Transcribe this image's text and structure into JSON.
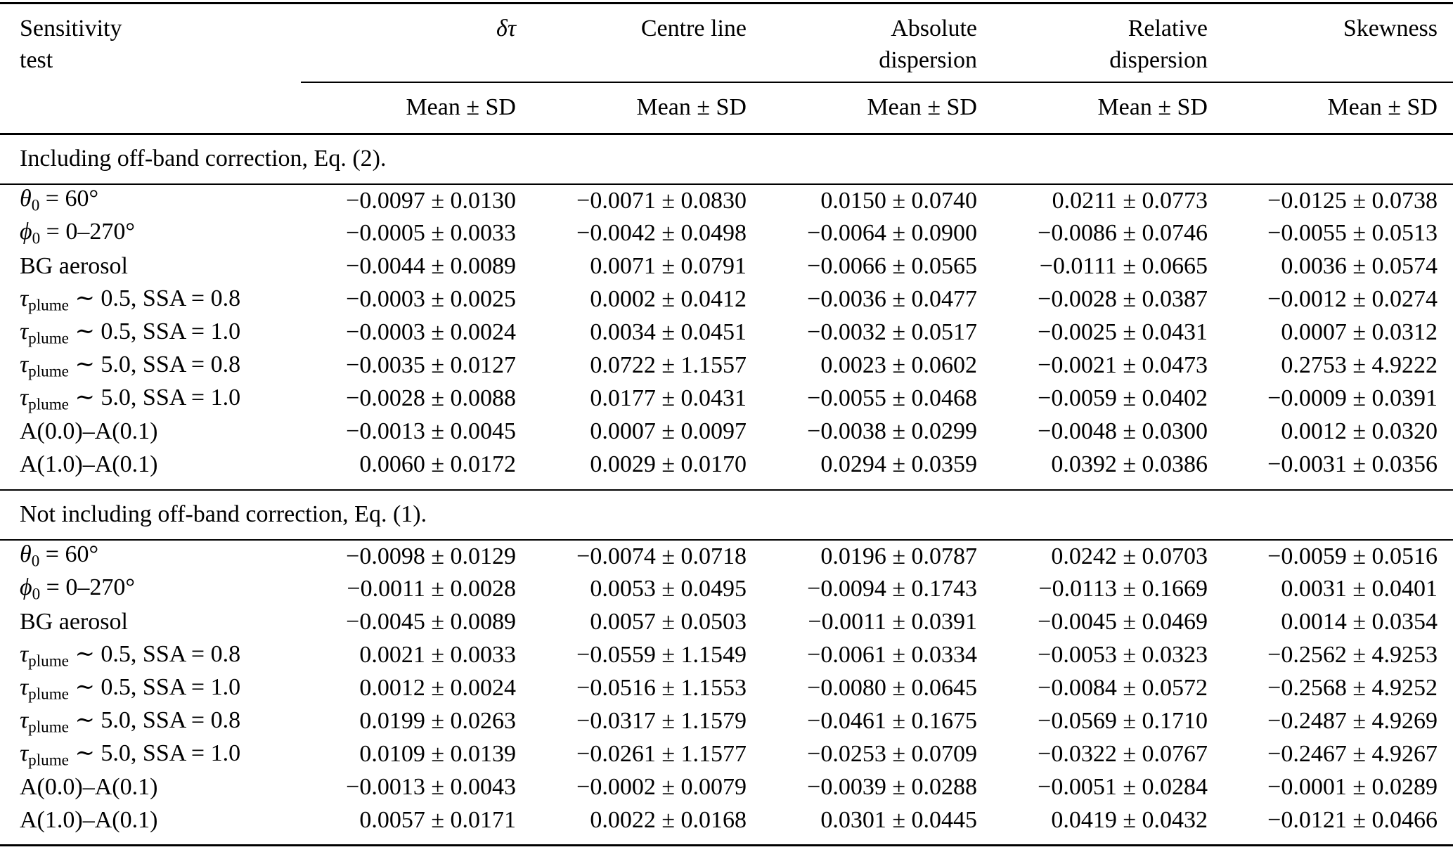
{
  "page": {
    "background": "#ffffff",
    "text_color": "#000000"
  },
  "table": {
    "row_header": {
      "line1": "Sensitivity",
      "line2": "test"
    },
    "subheader_label": "Mean ± SD",
    "columns": [
      {
        "key": "dtau",
        "line1": "δτ",
        "line2": ""
      },
      {
        "key": "centre-line",
        "line1": "Centre line",
        "line2": ""
      },
      {
        "key": "absolute-dispersion",
        "line1": "Absolute",
        "line2": "dispersion"
      },
      {
        "key": "relative-dispersion",
        "line1": "Relative",
        "line2": "dispersion"
      },
      {
        "key": "skewness",
        "line1": "Skewness",
        "line2": ""
      }
    ],
    "sections": [
      {
        "title": "Including off-band correction, Eq. (2).",
        "rows": [
          {
            "label_parts": [
              {
                "text": "θ",
                "style": "italic"
              },
              {
                "text": "0",
                "style": "sub"
              },
              {
                "text": " = 60°",
                "style": "normal"
              }
            ],
            "values": [
              "−0.0097 ± 0.0130",
              "−0.0071 ± 0.0830",
              "0.0150 ± 0.0740",
              "0.0211 ± 0.0773",
              "−0.0125 ± 0.0738"
            ]
          },
          {
            "label_parts": [
              {
                "text": "ϕ",
                "style": "italic"
              },
              {
                "text": "0",
                "style": "sub"
              },
              {
                "text": " = 0–270°",
                "style": "normal"
              }
            ],
            "values": [
              "−0.0005 ± 0.0033",
              "−0.0042 ± 0.0498",
              "−0.0064 ± 0.0900",
              "−0.0086 ± 0.0746",
              "−0.0055 ± 0.0513"
            ]
          },
          {
            "label_parts": [
              {
                "text": "BG aerosol",
                "style": "normal"
              }
            ],
            "values": [
              "−0.0044 ± 0.0089",
              "0.0071 ± 0.0791",
              "−0.0066 ± 0.0565",
              "−0.0111 ± 0.0665",
              "0.0036 ± 0.0574"
            ]
          },
          {
            "label_parts": [
              {
                "text": "τ",
                "style": "italic"
              },
              {
                "text": "plume",
                "style": "sub"
              },
              {
                "text": " ∼ 0.5, SSA = 0.8",
                "style": "normal"
              }
            ],
            "values": [
              "−0.0003 ± 0.0025",
              "0.0002 ± 0.0412",
              "−0.0036 ± 0.0477",
              "−0.0028 ± 0.0387",
              "−0.0012 ± 0.0274"
            ]
          },
          {
            "label_parts": [
              {
                "text": "τ",
                "style": "italic"
              },
              {
                "text": "plume",
                "style": "sub"
              },
              {
                "text": " ∼ 0.5, SSA = 1.0",
                "style": "normal"
              }
            ],
            "values": [
              "−0.0003 ± 0.0024",
              "0.0034 ± 0.0451",
              "−0.0032 ± 0.0517",
              "−0.0025 ± 0.0431",
              "0.0007 ± 0.0312"
            ]
          },
          {
            "label_parts": [
              {
                "text": "τ",
                "style": "italic"
              },
              {
                "text": "plume",
                "style": "sub"
              },
              {
                "text": " ∼ 5.0, SSA = 0.8",
                "style": "normal"
              }
            ],
            "values": [
              "−0.0035 ± 0.0127",
              "0.0722 ± 1.1557",
              "0.0023 ± 0.0602",
              "−0.0021 ± 0.0473",
              "0.2753 ± 4.9222"
            ]
          },
          {
            "label_parts": [
              {
                "text": "τ",
                "style": "italic"
              },
              {
                "text": "plume",
                "style": "sub"
              },
              {
                "text": " ∼ 5.0, SSA = 1.0",
                "style": "normal"
              }
            ],
            "values": [
              "−0.0028 ± 0.0088",
              "0.0177 ± 0.0431",
              "−0.0055 ± 0.0468",
              "−0.0059 ± 0.0402",
              "−0.0009 ± 0.0391"
            ]
          },
          {
            "label_parts": [
              {
                "text": "A(0.0)–A(0.1)",
                "style": "normal"
              }
            ],
            "values": [
              "−0.0013 ± 0.0045",
              "0.0007 ± 0.0097",
              "−0.0038 ± 0.0299",
              "−0.0048 ± 0.0300",
              "0.0012 ± 0.0320"
            ]
          },
          {
            "label_parts": [
              {
                "text": "A(1.0)–A(0.1)",
                "style": "normal"
              }
            ],
            "values": [
              "0.0060 ± 0.0172",
              "0.0029 ± 0.0170",
              "0.0294 ± 0.0359",
              "0.0392 ± 0.0386",
              "−0.0031 ± 0.0356"
            ]
          }
        ]
      },
      {
        "title": "Not including off-band correction, Eq. (1).",
        "rows": [
          {
            "label_parts": [
              {
                "text": "θ",
                "style": "italic"
              },
              {
                "text": "0",
                "style": "sub"
              },
              {
                "text": " = 60°",
                "style": "normal"
              }
            ],
            "values": [
              "−0.0098 ± 0.0129",
              "−0.0074 ± 0.0718",
              "0.0196 ± 0.0787",
              "0.0242 ± 0.0703",
              "−0.0059 ± 0.0516"
            ]
          },
          {
            "label_parts": [
              {
                "text": "ϕ",
                "style": "italic"
              },
              {
                "text": "0",
                "style": "sub"
              },
              {
                "text": " = 0–270°",
                "style": "normal"
              }
            ],
            "values": [
              "−0.0011 ± 0.0028",
              "0.0053 ± 0.0495",
              "−0.0094 ± 0.1743",
              "−0.0113 ± 0.1669",
              "0.0031 ± 0.0401"
            ]
          },
          {
            "label_parts": [
              {
                "text": "BG aerosol",
                "style": "normal"
              }
            ],
            "values": [
              "−0.0045 ± 0.0089",
              "0.0057 ± 0.0503",
              "−0.0011 ± 0.0391",
              "−0.0045 ± 0.0469",
              "0.0014 ± 0.0354"
            ]
          },
          {
            "label_parts": [
              {
                "text": "τ",
                "style": "italic"
              },
              {
                "text": "plume",
                "style": "sub"
              },
              {
                "text": " ∼ 0.5, SSA = 0.8",
                "style": "normal"
              }
            ],
            "values": [
              "0.0021 ± 0.0033",
              "−0.0559 ± 1.1549",
              "−0.0061 ± 0.0334",
              "−0.0053 ± 0.0323",
              "−0.2562 ± 4.9253"
            ]
          },
          {
            "label_parts": [
              {
                "text": "τ",
                "style": "italic"
              },
              {
                "text": "plume",
                "style": "sub"
              },
              {
                "text": " ∼ 0.5, SSA = 1.0",
                "style": "normal"
              }
            ],
            "values": [
              "0.0012 ± 0.0024",
              "−0.0516 ± 1.1553",
              "−0.0080 ± 0.0645",
              "−0.0084 ± 0.0572",
              "−0.2568 ± 4.9252"
            ]
          },
          {
            "label_parts": [
              {
                "text": "τ",
                "style": "italic"
              },
              {
                "text": "plume",
                "style": "sub"
              },
              {
                "text": " ∼ 5.0, SSA = 0.8",
                "style": "normal"
              }
            ],
            "values": [
              "0.0199 ± 0.0263",
              "−0.0317 ± 1.1579",
              "−0.0461 ± 0.1675",
              "−0.0569 ± 0.1710",
              "−0.2487 ± 4.9269"
            ]
          },
          {
            "label_parts": [
              {
                "text": "τ",
                "style": "italic"
              },
              {
                "text": "plume",
                "style": "sub"
              },
              {
                "text": " ∼ 5.0, SSA = 1.0",
                "style": "normal"
              }
            ],
            "values": [
              "0.0109 ± 0.0139",
              "−0.0261 ± 1.1577",
              "−0.0253 ± 0.0709",
              "−0.0322 ± 0.0767",
              "−0.2467 ± 4.9267"
            ]
          },
          {
            "label_parts": [
              {
                "text": "A(0.0)–A(0.1)",
                "style": "normal"
              }
            ],
            "values": [
              "−0.0013 ± 0.0043",
              "−0.0002 ± 0.0079",
              "−0.0039 ± 0.0288",
              "−0.0051 ± 0.0284",
              "−0.0001 ± 0.0289"
            ]
          },
          {
            "label_parts": [
              {
                "text": "A(1.0)–A(0.1)",
                "style": "normal"
              }
            ],
            "values": [
              "0.0057 ± 0.0171",
              "0.0022 ± 0.0168",
              "0.0301 ± 0.0445",
              "0.0419 ± 0.0432",
              "−0.0121 ± 0.0466"
            ]
          }
        ]
      }
    ]
  }
}
